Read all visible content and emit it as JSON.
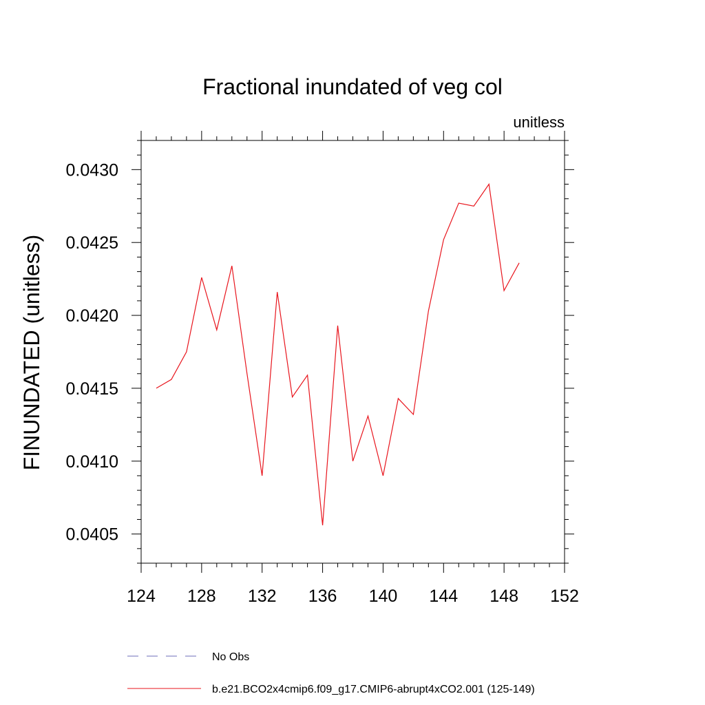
{
  "chart_data": {
    "type": "line",
    "title": "Fractional inundated of veg col",
    "units_label": "unitless",
    "ylabel": "FINUNDATED  (unitless)",
    "xlabel": "",
    "xlim": [
      124,
      152
    ],
    "ylim": [
      0.0403,
      0.0432
    ],
    "x_ticks": [
      124,
      128,
      132,
      136,
      140,
      144,
      148,
      152
    ],
    "x_tick_labels": [
      "124",
      "128",
      "132",
      "136",
      "140",
      "144",
      "148",
      "152"
    ],
    "y_ticks": [
      0.0405,
      0.041,
      0.0415,
      0.042,
      0.0425,
      0.043
    ],
    "y_tick_labels": [
      "0.0405",
      "0.0410",
      "0.0415",
      "0.0420",
      "0.0425",
      "0.0430"
    ],
    "grid": false,
    "legend_position": "bottom",
    "series": [
      {
        "name": "No Obs",
        "color": "#6b6bb8",
        "dash": "dashed",
        "x": [],
        "y": []
      },
      {
        "name": "b.e21.BCO2x4cmip6.f09_g17.CMIP6-abrupt4xCO2.001 (125-149)",
        "color": "#e8141c",
        "dash": "solid",
        "x": [
          125,
          126,
          127,
          128,
          129,
          130,
          131,
          132,
          133,
          134,
          135,
          136,
          137,
          138,
          139,
          140,
          141,
          142,
          143,
          144,
          145,
          146,
          147,
          148,
          149
        ],
        "y": [
          0.0415,
          0.04156,
          0.04175,
          0.04226,
          0.0419,
          0.04234,
          0.0416,
          0.0409,
          0.04216,
          0.04144,
          0.04159,
          0.04056,
          0.04193,
          0.041,
          0.04131,
          0.0409,
          0.04143,
          0.04132,
          0.04203,
          0.04252,
          0.04277,
          0.04275,
          0.0429,
          0.04217,
          0.04236
        ]
      }
    ]
  }
}
